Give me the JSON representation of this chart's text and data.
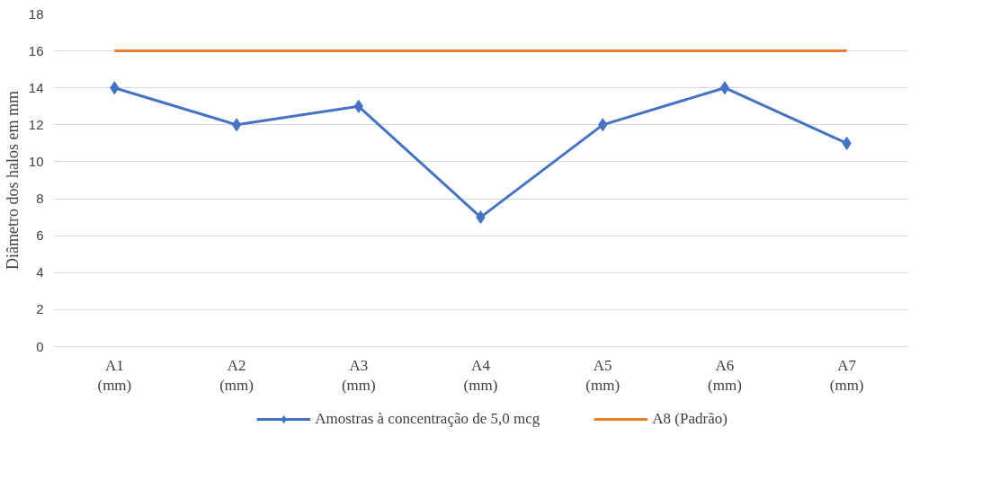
{
  "chart_data": {
    "type": "line",
    "ylabel": "Diâmetro dos halos em mm",
    "categories": [
      "A1\n(mm)",
      "A2\n(mm)",
      "A3\n(mm)",
      "A4\n(mm)",
      "A5\n(mm)",
      "A6\n(mm)",
      "A7\n(mm)"
    ],
    "series": [
      {
        "name": "Amostras à concentração de 5,0 mcg",
        "color": "#4472c4",
        "values": [
          14,
          12,
          13,
          7,
          12,
          14,
          11
        ],
        "marker": "diamond"
      },
      {
        "name": "A8 (Padrão)",
        "color": "#ed7d31",
        "values": [
          16,
          16,
          16,
          16,
          16,
          16,
          16
        ],
        "marker": "none"
      }
    ],
    "ylim": [
      0,
      18
    ],
    "yticks": [
      0,
      2,
      4,
      6,
      8,
      10,
      12,
      14,
      16,
      18
    ],
    "grid": "y",
    "legend": "bottom",
    "line_style": "solid"
  }
}
